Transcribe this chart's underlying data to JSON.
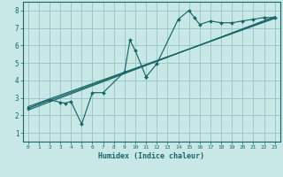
{
  "bg_color": "#c8e8e8",
  "grid_color": "#a0c8c8",
  "line_color": "#1a6666",
  "xlabel": "Humidex (Indice chaleur)",
  "xlim": [
    -0.5,
    23.5
  ],
  "ylim": [
    0.5,
    8.5
  ],
  "xticks": [
    0,
    1,
    2,
    3,
    4,
    5,
    6,
    7,
    8,
    9,
    10,
    11,
    12,
    13,
    14,
    15,
    16,
    17,
    18,
    19,
    20,
    21,
    22,
    23
  ],
  "yticks": [
    1,
    2,
    3,
    4,
    5,
    6,
    7,
    8
  ],
  "line1_x": [
    0,
    2,
    3,
    3.5,
    4,
    5,
    6,
    7,
    9,
    9.5,
    10,
    11,
    11,
    12,
    14,
    15,
    15.5,
    16,
    17,
    18,
    19,
    20,
    21,
    22,
    23
  ],
  "line1_y": [
    2.4,
    2.9,
    2.75,
    2.7,
    2.8,
    1.5,
    3.3,
    3.3,
    4.5,
    6.3,
    5.7,
    4.2,
    4.2,
    4.95,
    7.5,
    8.0,
    7.6,
    7.2,
    7.4,
    7.3,
    7.3,
    7.4,
    7.5,
    7.6,
    7.6
  ],
  "line2_x": [
    0,
    23
  ],
  "line2_y": [
    2.3,
    7.65
  ],
  "line3_x": [
    0,
    23
  ],
  "line3_y": [
    2.5,
    7.55
  ],
  "line4_x": [
    0,
    23
  ],
  "line4_y": [
    2.4,
    7.6
  ]
}
